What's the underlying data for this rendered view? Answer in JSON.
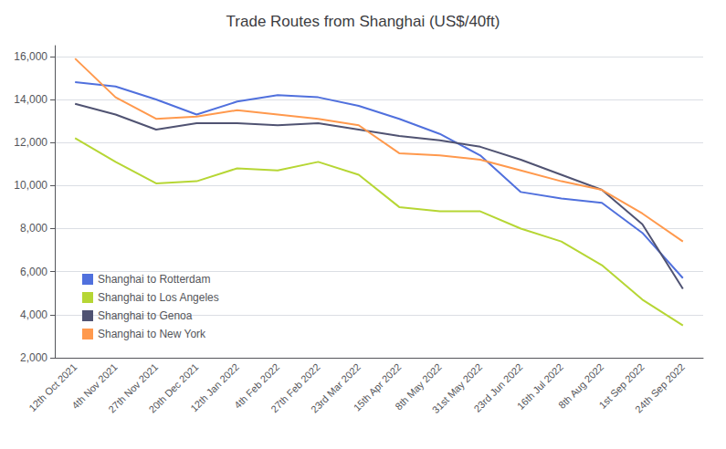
{
  "chart_data": {
    "type": "line",
    "title": "Trade Routes from Shanghai (US$/40ft)",
    "categories": [
      "12th Oct 2021",
      "4th Nov 2021",
      "27th Nov 2021",
      "20th Dec 2021",
      "12th Jan 2022",
      "4th Feb 2022",
      "27th Feb 2022",
      "23rd Mar 2022",
      "15th Apr 2022",
      "8th May 2022",
      "31st May 2022",
      "23rd Jun 2022",
      "16th Jul 2022",
      "8th Aug 2022",
      "1st Sep 2022",
      "24th Sep 2022"
    ],
    "series": [
      {
        "name": "Shanghai to Rotterdam",
        "values": [
          14800,
          14600,
          14000,
          13300,
          13900,
          14200,
          14100,
          13700,
          13100,
          12400,
          11400,
          9700,
          9400,
          9200,
          7800,
          5700
        ]
      },
      {
        "name": "Shanghai to Los Angeles",
        "values": [
          12200,
          11100,
          10100,
          10200,
          10800,
          10700,
          11100,
          10500,
          9000,
          8800,
          8800,
          8000,
          7400,
          6300,
          4700,
          3500
        ]
      },
      {
        "name": "Shanghai to Genoa",
        "values": [
          13800,
          13300,
          12600,
          12900,
          12900,
          12800,
          12900,
          12600,
          12300,
          12100,
          11800,
          11200,
          10500,
          9800,
          8200,
          5200
        ]
      },
      {
        "name": "Shanghai to New York",
        "values": [
          15900,
          14100,
          13100,
          13200,
          13500,
          13300,
          13100,
          12800,
          11500,
          11400,
          11200,
          10700,
          10200,
          9800,
          8700,
          7400
        ]
      }
    ],
    "ylim": [
      2000,
      16500
    ],
    "yticks": [
      {
        "value": 2000,
        "label": "2,000"
      },
      {
        "value": 4000,
        "label": "4,000"
      },
      {
        "value": 6000,
        "label": "6,000"
      },
      {
        "value": 8000,
        "label": "8,000"
      },
      {
        "value": 10000,
        "label": "10,000"
      },
      {
        "value": 12000,
        "label": "12,000"
      },
      {
        "value": 14000,
        "label": "14,000"
      },
      {
        "value": 16000,
        "label": "16,000"
      }
    ],
    "grid": true,
    "legend": "lower left"
  }
}
